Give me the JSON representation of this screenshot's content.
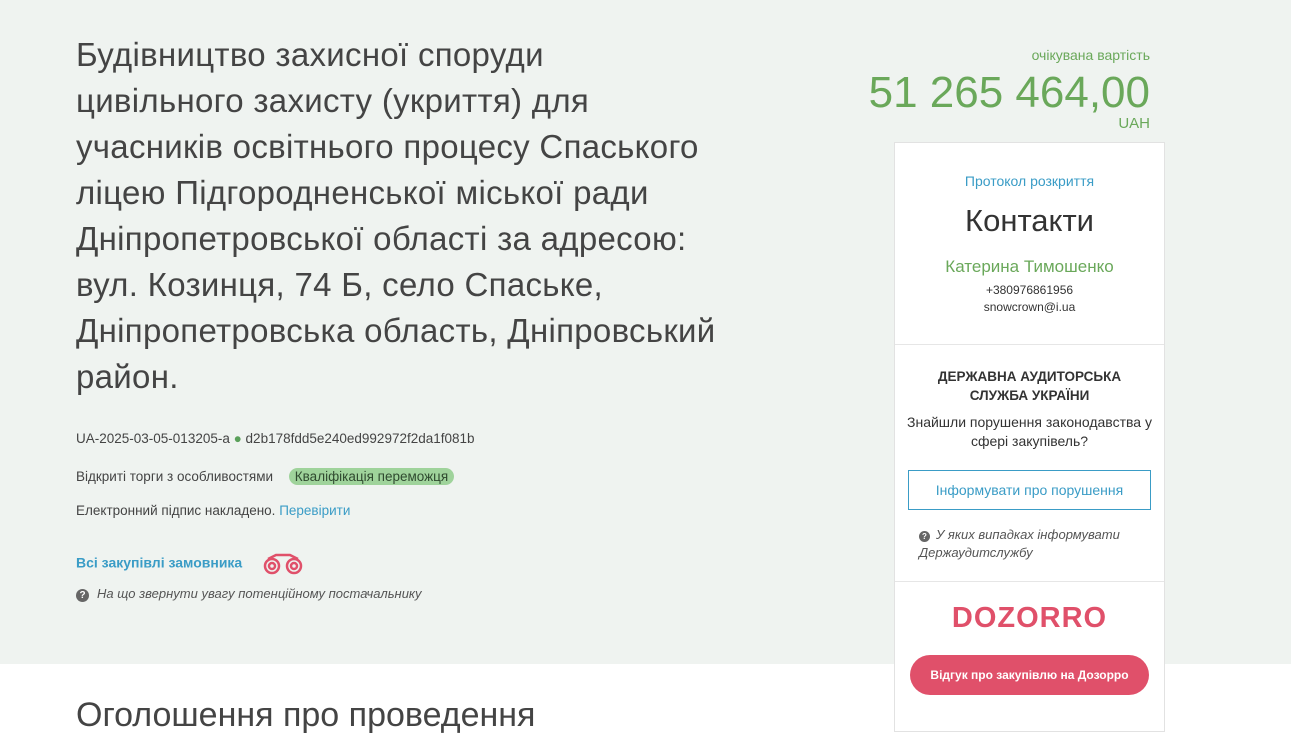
{
  "tender": {
    "title": "Будівництво захисної споруди цивільного захисту (укриття) для учасників освітнього процесу Спаського ліцею Підгородненської міської ради Дніпропетровської області за адресою: вул. Козинця, 74 Б, село Спаське, Дніпропетровська область, Дніпровський район.",
    "id": "UA-2025-03-05-013205-a",
    "hash": "d2b178fdd5e240ed992972f2da1f081b",
    "procedure": "Відкриті торги з особливостями",
    "status": "Кваліфікація переможця",
    "signature_text": "Електронний підпис накладено.",
    "signature_link": "Перевірити",
    "all_purchases": "Всі закупівлі замовника",
    "hint": "На що звернути увагу потенційному постачальнику"
  },
  "price": {
    "label": "очікувана вартість",
    "amount": "51 265 464,00",
    "currency": "UAH"
  },
  "contacts": {
    "protocol_link": "Протокол розкриття",
    "heading": "Контакти",
    "name": "Катерина Тимошенко",
    "phone": "+380976861956",
    "email": "snowcrown@i.ua"
  },
  "audit": {
    "title": "ДЕРЖАВНА АУДИТОРСЬКА СЛУЖБА УКРАЇНИ",
    "question": "Знайшли порушення законодавства у сфері закупівель?",
    "button": "Інформувати про порушення",
    "hint": "У яких випадках інформувати Держаудитслужбу"
  },
  "dozorro": {
    "logo": "DOZORRO",
    "button": "Відгук про закупівлю на Дозорро",
    "color": "#e0506a"
  },
  "section_heading": "Оголошення про проведення"
}
